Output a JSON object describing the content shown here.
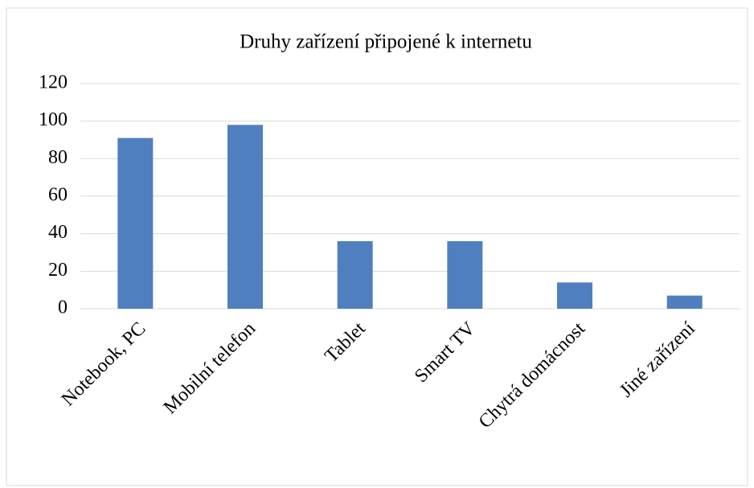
{
  "chart_data": {
    "type": "bar",
    "title": "Druhy zařízení připojené k internetu",
    "categories": [
      "Notebook, PC",
      "Mobilní telefon",
      "Tablet",
      "Smart TV",
      "Chytrá domácnost",
      "Jiné zařízení"
    ],
    "values": [
      91,
      98,
      36,
      36,
      14,
      7
    ],
    "color": "#4f7fbf",
    "ylim": [
      0,
      120
    ],
    "yticks": [
      0,
      20,
      40,
      60,
      80,
      100,
      120
    ],
    "grid": true
  }
}
